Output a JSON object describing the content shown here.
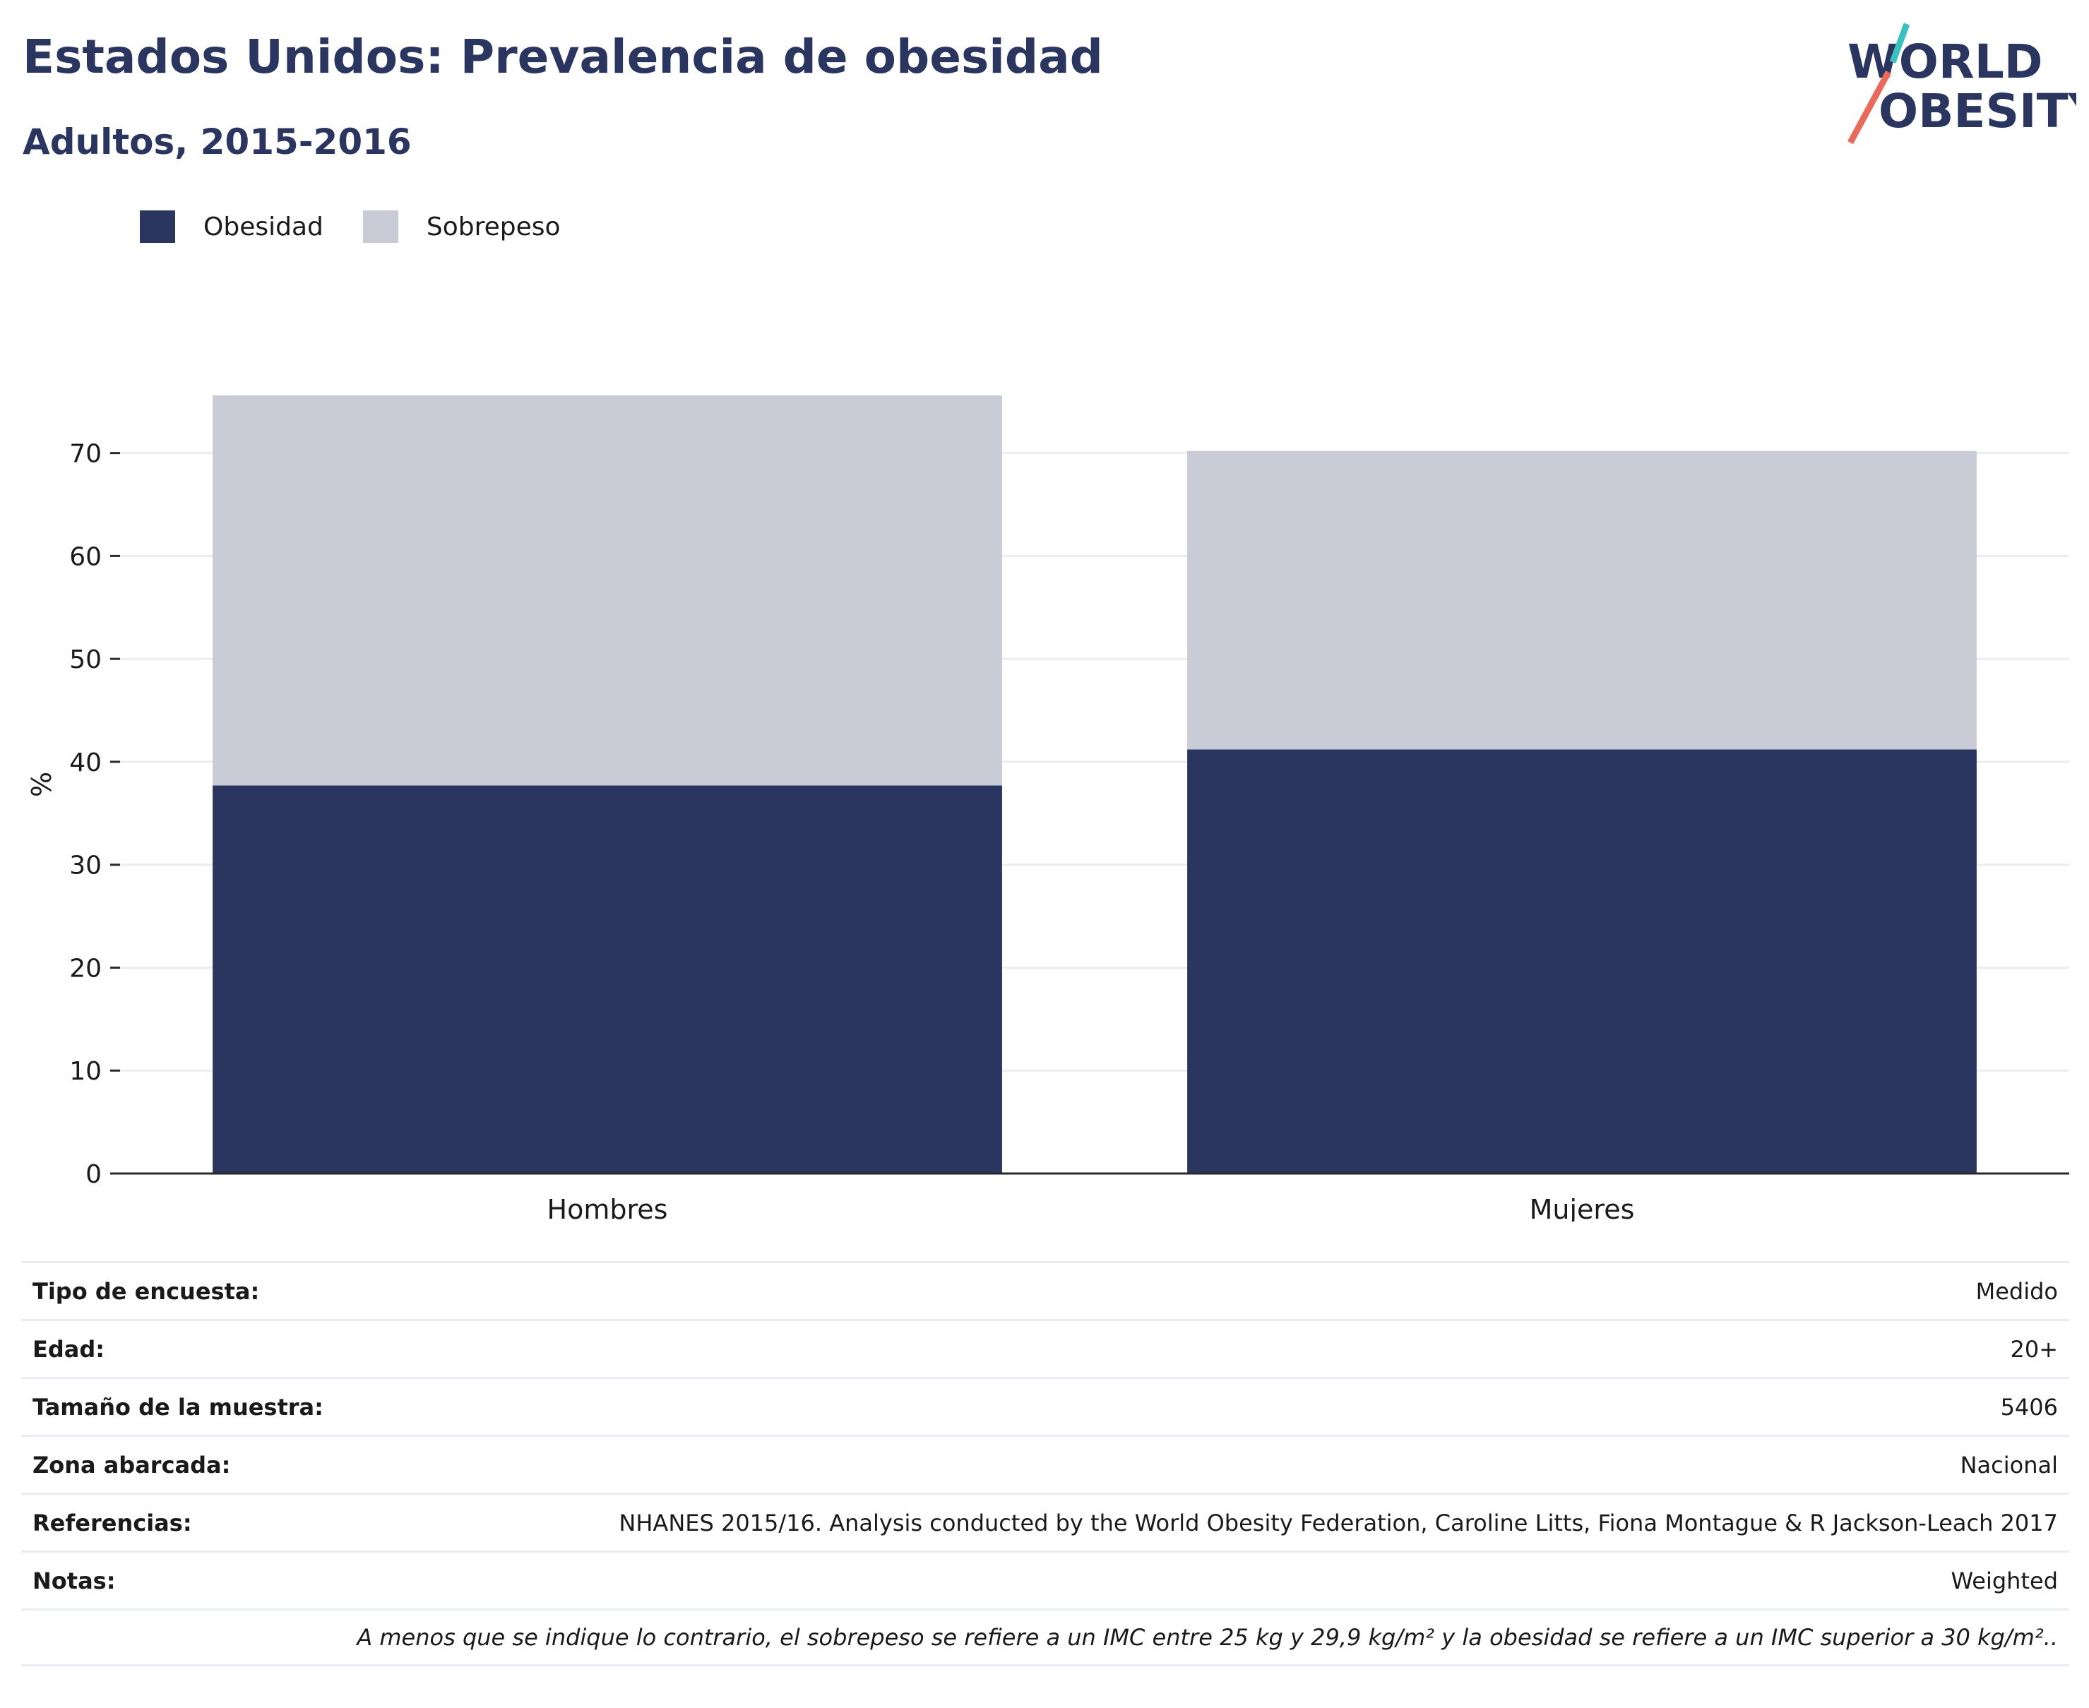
{
  "header": {
    "title": "Estados Unidos: Prevalencia de obesidad",
    "subtitle": "Adultos, 2015-2016"
  },
  "logo": {
    "line1": "WORLD",
    "line2": "OBESITY",
    "colors": {
      "text": "#2a365f",
      "slash_top": "#3bbfbf",
      "slash_bottom": "#e86a5c"
    }
  },
  "colors": {
    "obesidad": "#2a365f",
    "sobrepeso": "#c9ccd7",
    "grid": "#ebedf2",
    "axis": "#2a2a2a"
  },
  "chart_data": {
    "type": "bar",
    "stacked": true,
    "categories": [
      "Hombres",
      "Mujeres"
    ],
    "series": [
      {
        "name": "Obesidad",
        "values": [
          37.7,
          41.2
        ]
      },
      {
        "name": "Sobrepeso",
        "values": [
          37.9,
          29.0
        ]
      }
    ],
    "title": "",
    "xlabel": "",
    "ylabel": "%",
    "ylim": [
      0,
      75.6
    ],
    "yticks": [
      0,
      10,
      20,
      30,
      40,
      50,
      60,
      70
    ],
    "grid": true,
    "legend_position": "top-left"
  },
  "info": {
    "rows": [
      {
        "label": "Tipo de encuesta:",
        "value": "Medido"
      },
      {
        "label": "Edad:",
        "value": "20+"
      },
      {
        "label": "Tamaño de la muestra:",
        "value": "5406"
      },
      {
        "label": "Zona abarcada:",
        "value": "Nacional"
      },
      {
        "label": "Referencias:",
        "value": "NHANES 2015/16. Analysis conducted by the World Obesity Federation, Caroline Litts, Fiona Montague & R Jackson-Leach 2017"
      },
      {
        "label": "Notas:",
        "value": "Weighted"
      }
    ],
    "note": "A menos que se indique lo contrario, el sobrepeso se refiere a un IMC entre 25 kg y 29,9 kg/m² y la obesidad se refiere a un IMC superior a 30 kg/m².."
  }
}
